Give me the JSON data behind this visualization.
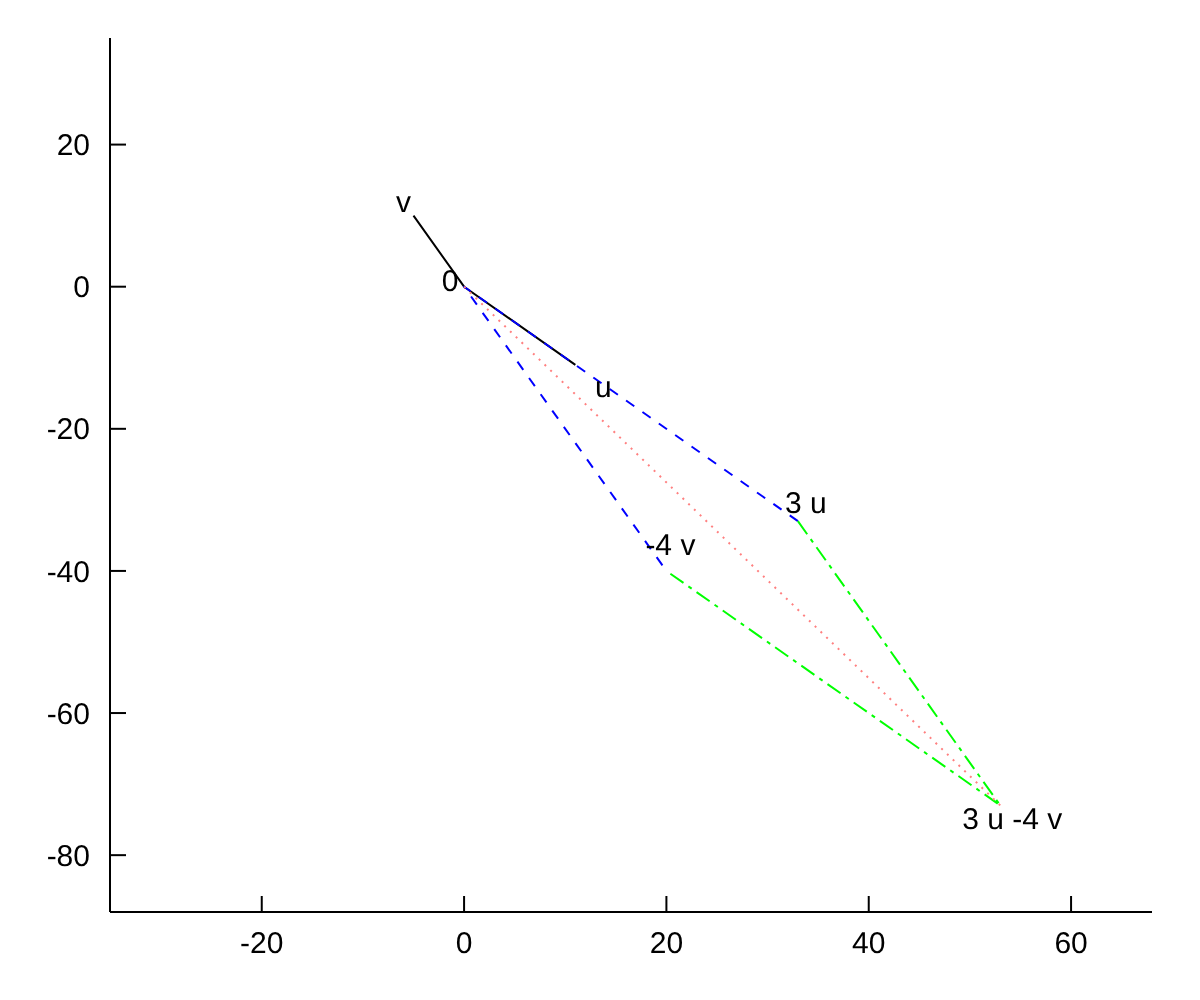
{
  "chart_data": {
    "type": "line",
    "xlim": [
      -35,
      68
    ],
    "ylim": [
      -88,
      35
    ],
    "xticks": [
      -20,
      0,
      20,
      40,
      60
    ],
    "yticks": [
      -80,
      -60,
      -40,
      -20,
      0,
      20
    ],
    "grid": false,
    "legend": false,
    "marker": "none",
    "series": [
      {
        "color": "#000000",
        "x": [
          -5,
          0,
          11
        ],
        "values": [
          10,
          0,
          -11
        ],
        "line_style": "solid"
      },
      {
        "color": "#0000ff",
        "x": [
          33,
          0,
          20
        ],
        "values": [
          -33,
          0,
          -40
        ],
        "line_style": "dashed"
      },
      {
        "color": "#00ff00",
        "x": [
          33,
          53,
          20
        ],
        "values": [
          -33,
          -73,
          -40
        ],
        "line_style": "dashdot"
      },
      {
        "color": "#ff8080",
        "x": [
          0,
          53
        ],
        "values": [
          0,
          -73
        ],
        "line_style": "dotted"
      }
    ],
    "annotations": [
      {
        "text": "v",
        "x": -5,
        "y": 10
      },
      {
        "text": "0",
        "x": 0,
        "y": 0
      },
      {
        "text": "u",
        "x": 11,
        "y": -11
      },
      {
        "text": "3 u",
        "x": 33,
        "y": -33
      },
      {
        "text": "-4 v",
        "x": 20,
        "y": -40
      },
      {
        "text": "3 u -4 v",
        "x": 53,
        "y": -73
      }
    ]
  }
}
